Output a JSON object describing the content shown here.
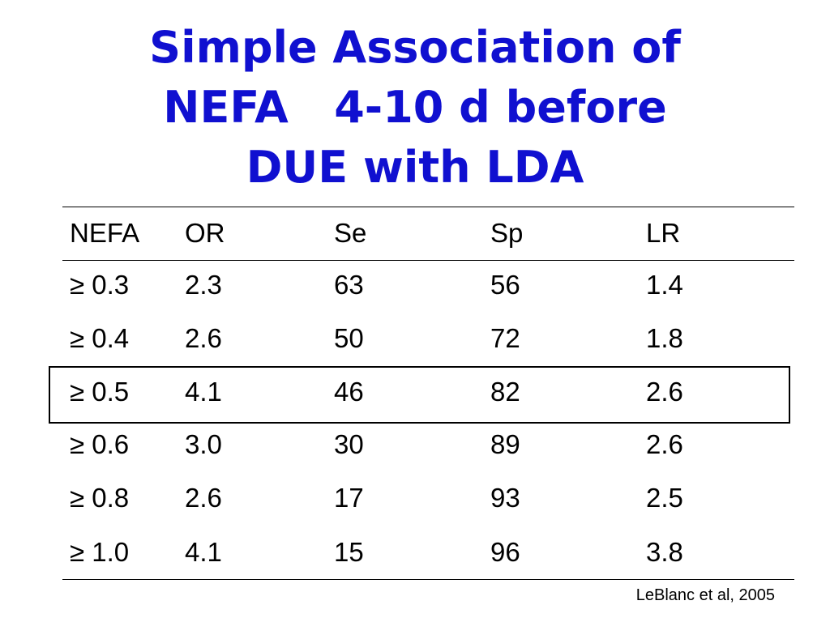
{
  "header": {
    "title_lines": [
      "Simple Association of",
      "NEFA   4-10 d before",
      "DUE with LDA"
    ]
  },
  "table": {
    "columns": [
      "NEFA",
      "OR",
      "Se",
      "Sp",
      "LR"
    ],
    "rows": [
      [
        "≥ 0.3",
        "2.3",
        "63",
        "56",
        "1.4"
      ],
      [
        "≥ 0.4",
        "2.6",
        "50",
        "72",
        "1.8"
      ],
      [
        "≥ 0.5",
        "4.1",
        "46",
        "82",
        "2.6"
      ],
      [
        "≥ 0.6",
        "3.0",
        "30",
        "89",
        "2.6"
      ],
      [
        "≥ 0.8",
        "2.6",
        "17",
        "93",
        "2.5"
      ],
      [
        "≥ 1.0",
        "4.1",
        "15",
        "96",
        "3.8"
      ]
    ]
  },
  "footer": {
    "citation": "LeBlanc et al, 2005"
  }
}
